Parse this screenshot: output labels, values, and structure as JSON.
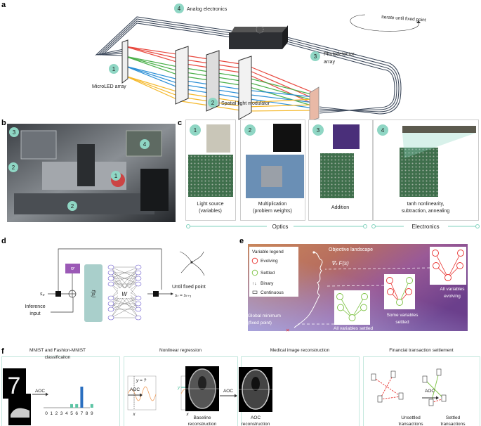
{
  "panel_labels": {
    "a": "a",
    "b": "b",
    "c": "c",
    "d": "d",
    "e": "e",
    "f": "f"
  },
  "colors": {
    "teal": "#8fd6c4",
    "teal_line": "#7fd1bd",
    "panel_border": "#c4e8de",
    "beam_red": "#e8493f",
    "beam_green": "#4bb04a",
    "beam_blue": "#2b8fd6",
    "beam_yellow": "#f5b82a",
    "purple_bias": "#9b59b6",
    "evolving": "#e8322f",
    "settled": "#7cc242",
    "bar_blue": "#2a6fc0",
    "bar_teal": "#5cc4a4"
  },
  "panel_a": {
    "microled": {
      "num": "1",
      "label": "MicroLED array"
    },
    "slm": {
      "num": "2",
      "label": "Spatial light modulator"
    },
    "photodetector": {
      "num": "3",
      "label_line1": "Photodetector",
      "label_line2": "array"
    },
    "electronics": {
      "num": "4",
      "label": "Analog electronics"
    },
    "loop_label": "Iterate until fixed point"
  },
  "panel_b": {
    "markers": [
      "3",
      "4",
      "2",
      "1",
      "2"
    ]
  },
  "panel_c": {
    "cards": [
      {
        "num": "1",
        "line1": "Light source",
        "line2": "(variables)"
      },
      {
        "num": "2",
        "line1": "Multiplication",
        "line2": "(problem weights)"
      },
      {
        "num": "3",
        "line1": "Addition",
        "line2": ""
      },
      {
        "num": "4",
        "line1": "tanh nonlinearity,",
        "line2": "subtraction, annealing"
      }
    ],
    "groups": {
      "optics": "Optics",
      "electronics": "Electronics"
    }
  },
  "panel_d": {
    "s0": "s₀",
    "bias": "b",
    "nonlinearity": "f(sᵢ)",
    "weights": "W",
    "inference_line1": "Inference",
    "inference_line2": "input",
    "fixed_point": "Until fixed point",
    "fixed_point_eq": "sₜ = sₜ₊₁"
  },
  "panel_e": {
    "legend_title": "Variable legend",
    "legend_items": [
      "Evolving",
      "Settled",
      "Binary",
      "Continuous"
    ],
    "binary_symbol": "↑↓",
    "landscape_title": "Objective landscape",
    "gradient": "∇ₛ F(s)",
    "global_min_line1": "Global minimum",
    "global_min_line2": "(fixed point)",
    "state_all_evolving": [
      "All variables",
      "evolving"
    ],
    "state_some_settled": [
      "Some variables",
      "settled"
    ],
    "state_all_settled": "All variables settled"
  },
  "panel_f": {
    "mnist": {
      "title_line1": "MNIST and Fashion-MNIST",
      "title_line2": "classificaiton",
      "arrow": "AOC",
      "digits": [
        "0",
        "1",
        "2",
        "3",
        "4",
        "5",
        "6",
        "7",
        "8",
        "9"
      ],
      "bar_levels": [
        0,
        0,
        0,
        0,
        0,
        0.17,
        0.17,
        1,
        0,
        0.17
      ]
    },
    "regression": {
      "title": "Nonlinear regression",
      "query": "y = ?",
      "arrow": "AOC",
      "x_label": "x",
      "y_label": "y"
    },
    "medical": {
      "title": "Medical image reconstruction",
      "arrow": "AOC",
      "left_line1": "Baseline",
      "left_line2": "reconstruction",
      "right_line1": "AOC",
      "right_line2": "reconstruction"
    },
    "financial": {
      "title": "Financial transaction settlement",
      "arrow": "AOC",
      "left_line1": "Unsettled",
      "left_line2": "transactions",
      "right_line1": "Settled",
      "right_line2": "transactions"
    }
  }
}
